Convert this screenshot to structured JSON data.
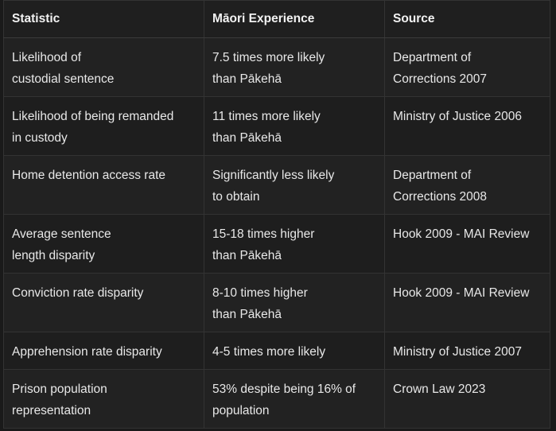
{
  "table": {
    "headers": [
      "Statistic",
      "Māori Experience",
      "Source"
    ],
    "rows": [
      {
        "statistic": "Likelihood of\ncustodial sentence",
        "experience": "7.5 times more likely\nthan Pākehā",
        "source": "Department of\nCorrections 2007"
      },
      {
        "statistic": "Likelihood of being remanded\nin custody",
        "experience": "11 times more likely\nthan Pākehā",
        "source": "Ministry of Justice 2006"
      },
      {
        "statistic": "Home detention access rate",
        "experience": "Significantly less likely\nto obtain",
        "source": "Department of\nCorrections 2008"
      },
      {
        "statistic": "Average sentence\nlength disparity",
        "experience": "15-18 times higher\nthan Pākehā",
        "source": "Hook 2009 - MAI Review"
      },
      {
        "statistic": "Conviction rate disparity",
        "experience": "8-10 times higher\nthan Pākehā",
        "source": "Hook 2009 - MAI Review"
      },
      {
        "statistic": "Apprehension rate disparity",
        "experience": "4-5 times more likely",
        "source": "Ministry of Justice 2007"
      },
      {
        "statistic": "Prison population\nrepresentation",
        "experience": "53% despite being 16% of\npopulation",
        "source": "Crown Law 2023"
      }
    ]
  }
}
